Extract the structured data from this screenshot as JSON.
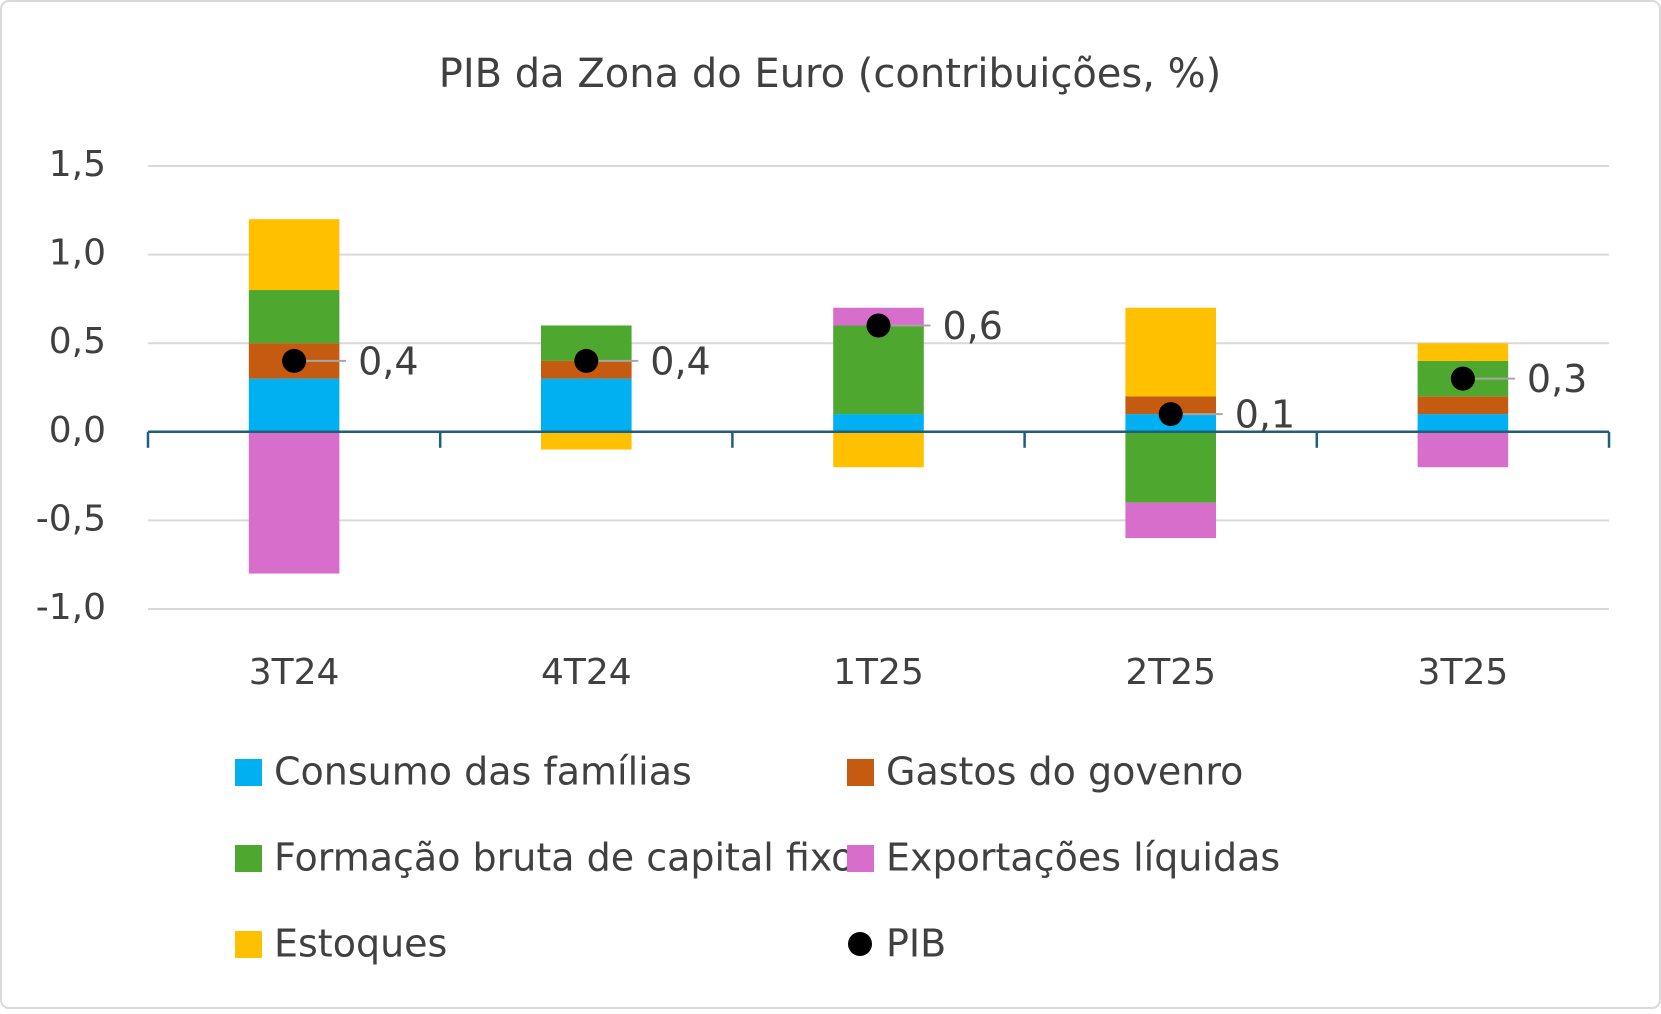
{
  "chart_data": {
    "type": "bar",
    "stacked": true,
    "title": "PIB da Zona do Euro (contribuições, %)",
    "categories": [
      "3T24",
      "4T24",
      "1T25",
      "2T25",
      "3T25"
    ],
    "series": [
      {
        "name": "Consumo das famílias",
        "color": "#00b0f0",
        "values": [
          0.3,
          0.3,
          0.1,
          0.1,
          0.1
        ]
      },
      {
        "name": "Gastos do govenro",
        "color": "#c55a11",
        "values": [
          0.2,
          0.1,
          0,
          0.1,
          0.1
        ]
      },
      {
        "name": "Formação bruta de capital fixo",
        "color": "#4ea72e",
        "values": [
          0.3,
          0.2,
          0.5,
          -0.4,
          0.2
        ]
      },
      {
        "name": "Exportações líquidas",
        "color": "#d86ecc",
        "values": [
          -0.8,
          0,
          0.1,
          -0.2,
          -0.2
        ]
      },
      {
        "name": "Estoques",
        "color": "#ffc000",
        "values": [
          0.4,
          -0.1,
          -0.2,
          0.5,
          0.1
        ]
      },
      {
        "name": "PIB",
        "color": "#000000",
        "type": "scatter",
        "values": [
          0.4,
          0.4,
          0.6,
          0.1,
          0.3
        ],
        "value_labels": [
          "0,4",
          "0,4",
          "0,6",
          "0,1",
          "0,3"
        ]
      }
    ],
    "ylim": [
      -1.0,
      1.5
    ],
    "yticks": [
      {
        "value": -1.0,
        "label": "-1,0"
      },
      {
        "value": -0.5,
        "label": "-0,5"
      },
      {
        "value": 0,
        "label": "0,0"
      },
      {
        "value": 0.5,
        "label": "0,5"
      },
      {
        "value": 1.0,
        "label": "1,0"
      },
      {
        "value": 1.5,
        "label": "1,5"
      }
    ],
    "grid": true,
    "legend": "bottom"
  }
}
